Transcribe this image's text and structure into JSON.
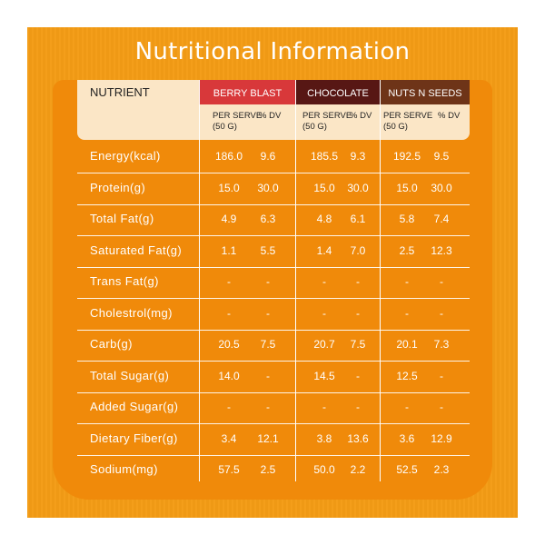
{
  "title": "Nutritional Information",
  "colors": {
    "berry_blast": "#d8383a",
    "chocolate": "#571714",
    "nuts_n_seeds": "#6e3418"
  },
  "header": {
    "nutrient": "NUTRIENT",
    "products": [
      "BERRY BLAST",
      "CHOCOLATE",
      "NUTS N SEEDS"
    ],
    "per_serve": "PER SERVE",
    "serve_size": "(50 G)",
    "dv": "% DV"
  },
  "rows": [
    {
      "label": "Energy(kcal)",
      "values": [
        "186.0",
        "9.6",
        "185.5",
        "9.3",
        "192.5",
        "9.5"
      ]
    },
    {
      "label": "Protein(g)",
      "values": [
        "15.0",
        "30.0",
        "15.0",
        "30.0",
        "15.0",
        "30.0"
      ]
    },
    {
      "label": "Total Fat(g)",
      "values": [
        "4.9",
        "6.3",
        "4.8",
        "6.1",
        "5.8",
        "7.4"
      ]
    },
    {
      "label": "Saturated Fat(g)",
      "values": [
        "1.1",
        "5.5",
        "1.4",
        "7.0",
        "2.5",
        "12.3"
      ]
    },
    {
      "label": "Trans Fat(g)",
      "values": [
        "-",
        "-",
        "-",
        "-",
        "-",
        "-"
      ]
    },
    {
      "label": "Cholestrol(mg)",
      "values": [
        "-",
        "-",
        "-",
        "-",
        "-",
        "-"
      ]
    },
    {
      "label": "Carb(g)",
      "values": [
        "20.5",
        "7.5",
        "20.7",
        "7.5",
        "20.1",
        "7.3"
      ]
    },
    {
      "label": "Total Sugar(g)",
      "values": [
        "14.0",
        "-",
        "14.5",
        "-",
        "12.5",
        "-"
      ]
    },
    {
      "label": "Added Sugar(g)",
      "values": [
        "-",
        "-",
        "-",
        "-",
        "-",
        "-"
      ]
    },
    {
      "label": "Dietary Fiber(g)",
      "values": [
        "3.4",
        "12.1",
        "3.8",
        "13.6",
        "3.6",
        "12.9"
      ]
    },
    {
      "label": "Sodium(mg)",
      "values": [
        "57.5",
        "2.5",
        "50.0",
        "2.2",
        "52.5",
        "2.3"
      ]
    }
  ]
}
